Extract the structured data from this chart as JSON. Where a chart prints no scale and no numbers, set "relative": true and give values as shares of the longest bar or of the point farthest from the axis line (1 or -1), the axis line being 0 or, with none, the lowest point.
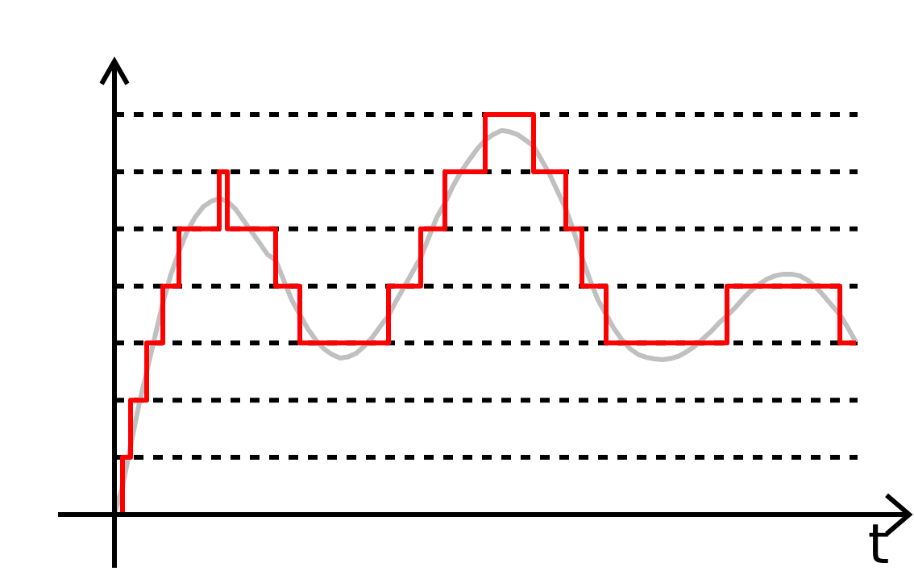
{
  "chart_data": {
    "type": "line",
    "xlabel": "t",
    "relative": true,
    "categories": [
      null,
      null,
      null,
      null,
      null,
      null,
      null,
      null,
      null,
      null,
      null,
      null,
      null,
      null,
      null,
      null,
      null,
      null,
      null,
      null,
      null,
      null,
      null,
      null,
      null,
      null,
      null,
      null,
      null,
      null,
      null,
      null,
      null,
      null,
      null,
      null,
      null,
      null,
      null,
      null,
      null,
      null,
      null,
      null,
      null,
      null,
      null,
      null,
      null,
      null,
      null,
      null,
      null,
      null,
      null,
      null,
      null,
      null,
      null,
      null,
      null,
      null,
      null,
      null,
      null,
      null,
      null,
      null,
      null,
      null,
      null,
      null,
      null,
      null,
      null,
      null,
      null,
      null,
      null,
      null,
      null,
      null,
      null,
      null,
      null,
      null,
      null,
      null,
      null,
      null,
      null,
      null,
      null
    ],
    "series": [
      {
        "type": "line",
        "color": "#c0c0c0",
        "values": [
          0,
          0.071,
          0.171,
          0.271,
          0.357,
          0.443,
          0.529,
          0.6,
          0.657,
          0.707,
          0.743,
          0.769,
          0.783,
          0.79,
          0.783,
          0.764,
          0.736,
          0.707,
          0.679,
          0.65,
          0.636,
          0.586,
          0.536,
          0.5,
          0.464,
          0.436,
          0.414,
          0.4,
          0.391,
          0.394,
          0.403,
          0.421,
          0.443,
          0.471,
          0.497,
          0.536,
          0.571,
          0.607,
          0.643,
          0.693,
          0.743,
          0.779,
          0.821,
          0.857,
          0.886,
          0.914,
          0.936,
          0.95,
          0.96,
          0.957,
          0.95,
          0.936,
          0.921,
          0.886,
          0.85,
          0.807,
          0.764,
          0.707,
          0.643,
          0.586,
          0.536,
          0.5,
          0.464,
          0.436,
          0.414,
          0.4,
          0.393,
          0.389,
          0.387,
          0.39,
          0.396,
          0.407,
          0.421,
          0.439,
          0.457,
          0.479,
          0.497,
          0.517,
          0.54,
          0.56,
          0.576,
          0.589,
          0.597,
          0.601,
          0.601,
          0.597,
          0.586,
          0.569,
          0.547,
          0.523,
          0.5,
          0.467,
          0.431
        ]
      },
      {
        "type": "step",
        "color": "#ff0000",
        "values": [
          0,
          0.143,
          0.286,
          0.286,
          0.429,
          0.429,
          0.571,
          0.571,
          0.714,
          0.714,
          0.714,
          0.714,
          0.714,
          0.857,
          0.714,
          0.714,
          0.714,
          0.714,
          0.714,
          0.714,
          0.571,
          0.571,
          0.571,
          0.429,
          0.429,
          0.429,
          0.429,
          0.429,
          0.429,
          0.429,
          0.429,
          0.429,
          0.429,
          0.429,
          0.571,
          0.571,
          0.571,
          0.571,
          0.714,
          0.714,
          0.714,
          0.857,
          0.857,
          0.857,
          0.857,
          0.857,
          1,
          1,
          1,
          1,
          1,
          1,
          0.857,
          0.857,
          0.857,
          0.857,
          0.714,
          0.714,
          0.571,
          0.571,
          0.571,
          0.429,
          0.429,
          0.429,
          0.429,
          0.429,
          0.429,
          0.429,
          0.429,
          0.429,
          0.429,
          0.429,
          0.429,
          0.429,
          0.429,
          0.429,
          0.571,
          0.571,
          0.571,
          0.571,
          0.571,
          0.571,
          0.571,
          0.571,
          0.571,
          0.571,
          0.571,
          0.571,
          0.571,
          0.571,
          0.429,
          0.429,
          0.429
        ]
      }
    ],
    "ref_lines": [
      {
        "axis": "y",
        "value": 0.143,
        "line_style": "dashed",
        "color": "#000000"
      },
      {
        "axis": "y",
        "value": 0.286,
        "line_style": "dashed",
        "color": "#000000"
      },
      {
        "axis": "y",
        "value": 0.429,
        "line_style": "dashed",
        "color": "#000000"
      },
      {
        "axis": "y",
        "value": 0.571,
        "line_style": "dashed",
        "color": "#000000"
      },
      {
        "axis": "y",
        "value": 0.714,
        "line_style": "dashed",
        "color": "#000000"
      },
      {
        "axis": "y",
        "value": 0.857,
        "line_style": "dashed",
        "color": "#000000"
      },
      {
        "axis": "y",
        "value": 1,
        "line_style": "dashed",
        "color": "#000000"
      }
    ]
  }
}
